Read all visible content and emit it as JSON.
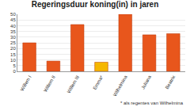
{
  "chart_data": {
    "type": "bar",
    "title": "Regeringsduur koning(in) in jaren",
    "categories": [
      "Willem I",
      "Willem II",
      "Willem III",
      "Emma*",
      "Wilhelmina",
      "Juliana",
      "Beatrix"
    ],
    "values": [
      25,
      9,
      41,
      8,
      50,
      32,
      33
    ],
    "colors": [
      "#e8561c",
      "#e8561c",
      "#e8561c",
      "#f5b700",
      "#e8561c",
      "#e8561c",
      "#e8561c"
    ],
    "ylim": [
      0,
      50
    ],
    "yticks": [
      0,
      5,
      10,
      15,
      20,
      25,
      30,
      35,
      40,
      45,
      50
    ],
    "grid": true,
    "annotation": "* als regentes van Wilhelmina"
  }
}
